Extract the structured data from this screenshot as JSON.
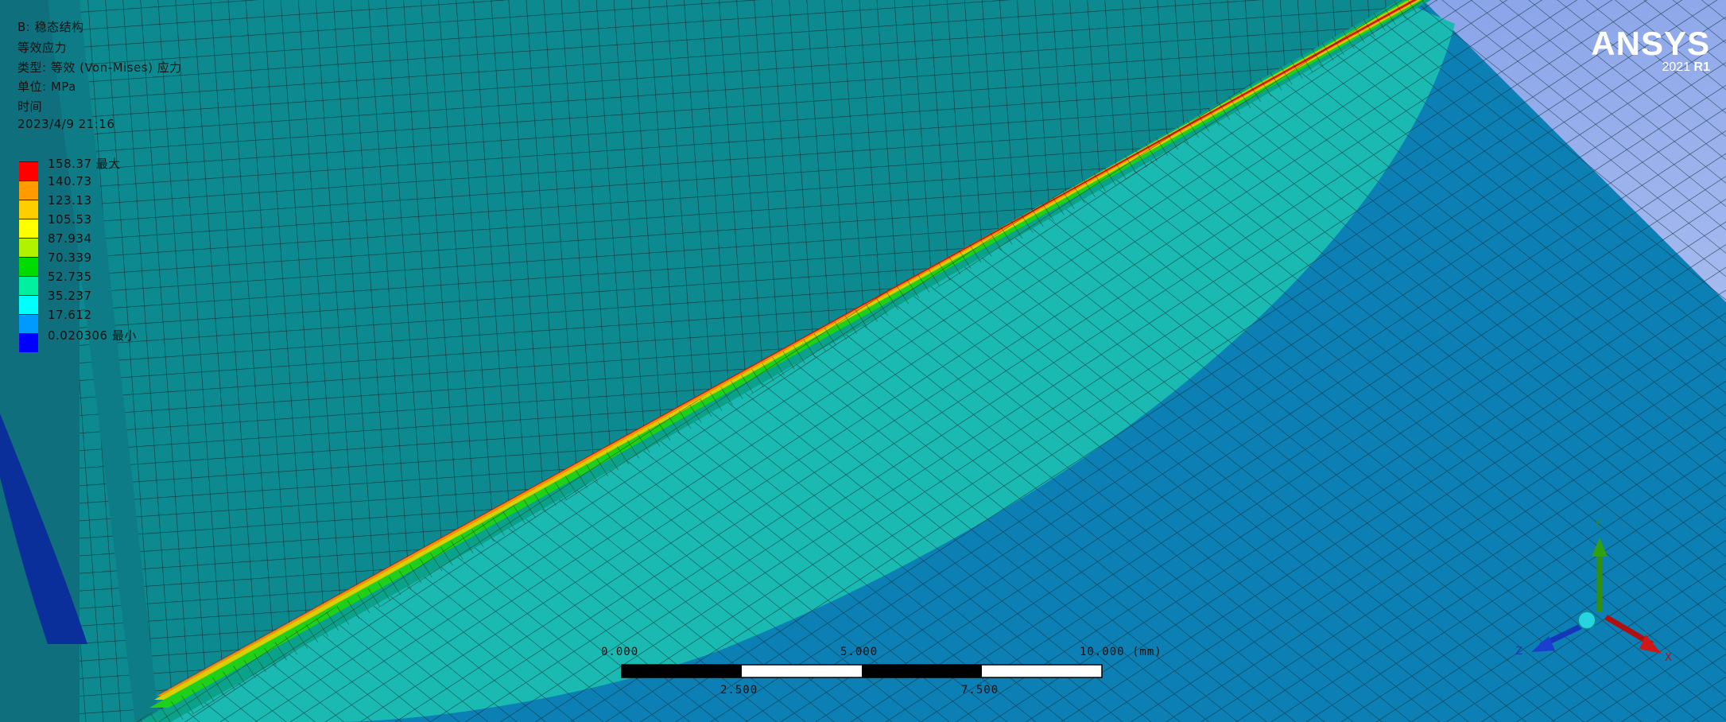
{
  "result_info": {
    "line1": "B: 稳态结构",
    "line2": "等效应力",
    "line3": "类型: 等效 (Von-Mises) 应力",
    "line4": "单位: MPa",
    "line5": "时间",
    "line6": "2023/4/9 21:16"
  },
  "legend": {
    "entries": [
      {
        "label": "158.37 最大",
        "color": "#ff0000"
      },
      {
        "label": "140.73",
        "color": "#ff9a00"
      },
      {
        "label": "123.13",
        "color": "#ffce00"
      },
      {
        "label": "105.53",
        "color": "#ffff00"
      },
      {
        "label": "87.934",
        "color": "#b0f200"
      },
      {
        "label": "70.339",
        "color": "#00dc00"
      },
      {
        "label": "52.735",
        "color": "#00f0a0"
      },
      {
        "label": "35.237",
        "color": "#00ffff"
      },
      {
        "label": "17.612",
        "color": "#009aff"
      },
      {
        "label": "0.020306 最小",
        "color": "#0000ff"
      }
    ]
  },
  "brand": {
    "name": "ANSYS",
    "version": "2021",
    "release": "R1"
  },
  "scale_bar": {
    "labels_top": [
      "0.000",
      "5.000",
      "10.000 (mm)"
    ],
    "labels_bottom": [
      "2.500",
      "7.500"
    ]
  },
  "triad": {
    "x_label": "X",
    "y_label": "Y",
    "z_label": "Z"
  },
  "colors": {
    "background_top": "#6f8fe3",
    "background_bottom": "#b4c6f2",
    "plate_mesh": "#0a7a86",
    "region_light": "#17b8b0",
    "region_outer": "#0b7bb3",
    "weld_hot": "#c23a16"
  }
}
